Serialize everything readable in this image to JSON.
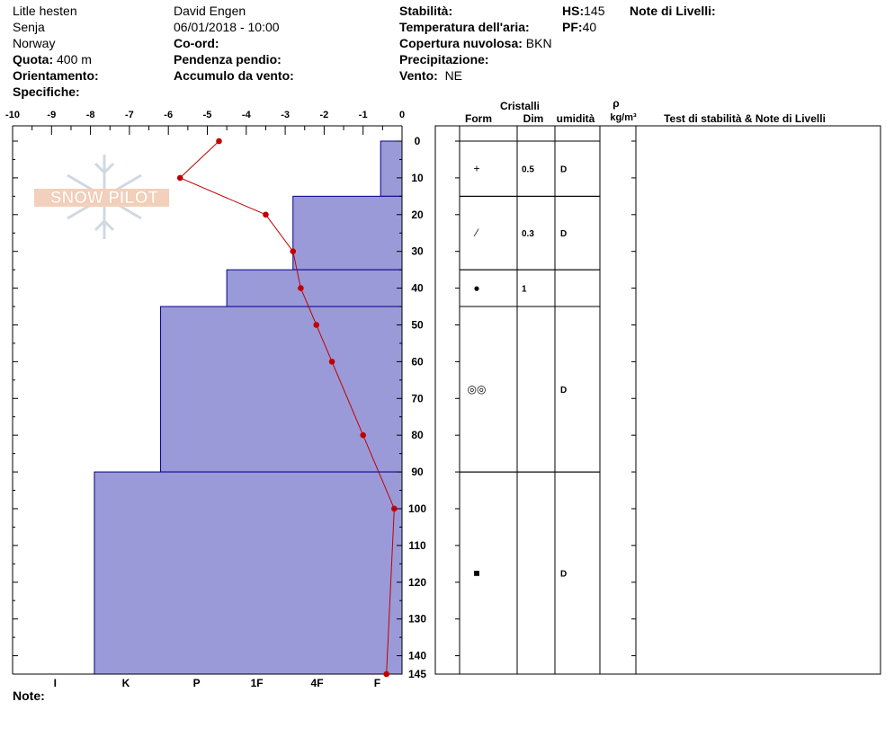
{
  "header": {
    "location": "Litle hesten",
    "region": "Senja",
    "country": "Norway",
    "elevation_label": "Quota:",
    "elevation_value": "400 m",
    "aspect_label": "Orientamento:",
    "specifics_label": "Specifiche:",
    "observer": "David Engen",
    "datetime": "06/01/2018 - 10:00",
    "coord_label": "Co-ord:",
    "slope_label": "Pendenza pendio:",
    "wind_loading_label": "Accumulo da vento:",
    "stability_label": "Stabilità:",
    "air_temp_label": "Temperatura dell'aria:",
    "cloud_label": "Copertura nuvolosa:",
    "cloud_value": "BKN",
    "precip_label": "Precipitazione:",
    "wind_label": "Vento:",
    "wind_value": "NE",
    "hs_label": "HS:",
    "hs_value": "145",
    "pf_label": "PF:",
    "pf_value": "40",
    "layer_notes_label": "Note di Livelli:"
  },
  "watermark": "SNOW PILOT",
  "note_label": "Note:",
  "columns": {
    "crystals": "Cristalli",
    "form": "Form",
    "size": "Dim",
    "moisture": "umidità",
    "rho": "ρ",
    "density_unit": "kg/m³",
    "tests": "Test di stabilità & Note di Livelli"
  },
  "chart_data": {
    "type": "line",
    "title": "",
    "x_temperature_ticks": [
      "-10",
      "-9",
      "-8",
      "-7",
      "-6",
      "-5",
      "-4",
      "-3",
      "-2",
      "-1",
      "0"
    ],
    "x_temperature_range": [
      -10,
      0
    ],
    "hardness_ticks": [
      "I",
      "K",
      "P",
      "1F",
      "4F",
      "F"
    ],
    "depth_ticks": [
      "0",
      "10",
      "20",
      "30",
      "40",
      "50",
      "60",
      "70",
      "80",
      "90",
      "100",
      "110",
      "120",
      "130",
      "140",
      "145"
    ],
    "depth_range": [
      0,
      145
    ],
    "temperature_profile": {
      "depth": [
        0,
        10,
        20,
        30,
        40,
        50,
        60,
        80,
        100,
        145
      ],
      "temperature": [
        -4.7,
        -5.7,
        -3.5,
        -2.8,
        -2.6,
        -2.2,
        -1.8,
        -1.0,
        -0.2,
        -0.4
      ]
    },
    "hardness_profile": [
      {
        "top": 0,
        "bottom": 15,
        "hardness_value": 0.55
      },
      {
        "top": 15,
        "bottom": 35,
        "hardness_value": 2.8
      },
      {
        "top": 35,
        "bottom": 45,
        "hardness_value": 4.5
      },
      {
        "top": 45,
        "bottom": 90,
        "hardness_value": 6.2
      },
      {
        "top": 90,
        "bottom": 145,
        "hardness_value": 7.9
      }
    ],
    "layers": [
      {
        "top": 0,
        "bottom": 15,
        "form": "+",
        "size": "0.5",
        "moisture": "D"
      },
      {
        "top": 15,
        "bottom": 35,
        "form": "⁄",
        "size": "0.3",
        "moisture": "D"
      },
      {
        "top": 35,
        "bottom": 45,
        "form": "●",
        "size": "1",
        "moisture": ""
      },
      {
        "top": 45,
        "bottom": 90,
        "form": "◎◎",
        "size": "",
        "moisture": "D"
      },
      {
        "top": 90,
        "bottom": 145,
        "form": "■",
        "size": "",
        "moisture": "D"
      }
    ],
    "colors": {
      "hardness_fill": "#9b9ad8",
      "hardness_stroke": "#00008b",
      "temperature": "#c00000"
    }
  }
}
